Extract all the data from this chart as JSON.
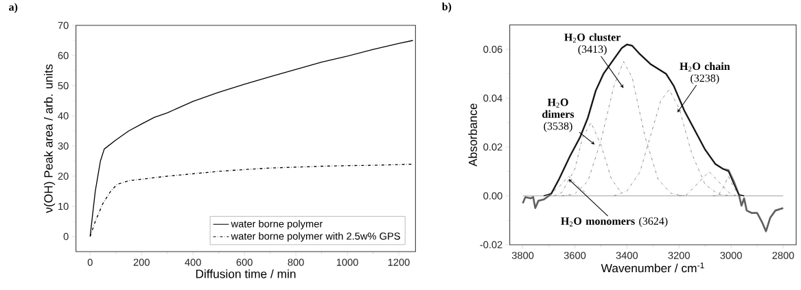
{
  "chart_data": [
    {
      "type": "line",
      "title": "a)",
      "xlabel": "Diffusion time / min",
      "ylabel": "ν(OH) Peak area / arb. units",
      "xlim": [
        -55,
        1265
      ],
      "ylim": [
        -5,
        70
      ],
      "xticks": [
        0,
        200,
        400,
        600,
        800,
        1000,
        1200
      ],
      "yticks": [
        0,
        10,
        20,
        30,
        40,
        50,
        60,
        70
      ],
      "legend": "bottom right",
      "series": [
        {
          "name": "water borne polymer",
          "color": "#000000",
          "line_style": "solid",
          "x": [
            0,
            20,
            40,
            55,
            100,
            150,
            200,
            250,
            300,
            400,
            500,
            600,
            700,
            800,
            900,
            1000,
            1100,
            1200,
            1255
          ],
          "values": [
            0,
            15,
            25,
            29,
            32,
            35,
            37.3,
            39.5,
            41,
            44.8,
            47.8,
            50.5,
            53,
            55.4,
            57.8,
            59.8,
            62,
            64,
            65
          ]
        },
        {
          "name": "water borne polymer with 2.5w% GPS",
          "color": "#000000",
          "line_style": "dashed",
          "x": [
            0,
            20,
            50,
            80,
            105,
            150,
            200,
            300,
            400,
            500,
            600,
            700,
            800,
            900,
            1000,
            1100,
            1255
          ],
          "values": [
            0,
            5,
            11,
            15,
            17.3,
            18.5,
            19,
            20,
            20.8,
            21.6,
            22.2,
            22.7,
            23,
            23.3,
            23.5,
            23.6,
            24
          ]
        }
      ]
    },
    {
      "type": "line",
      "title": "b)",
      "xlabel": "Wavenumber / cm$^{-1}$",
      "ylabel": "Absorbance",
      "xlim": [
        3850,
        2750
      ],
      "ylim": [
        -0.02,
        0.07
      ],
      "xticks": [
        3800,
        3600,
        3400,
        3200,
        3000,
        2800
      ],
      "yticks": [
        {
          "value": -0.02,
          "label": "-0.02"
        },
        {
          "value": 0,
          "label": "0.00"
        },
        {
          "value": 0.02,
          "label": "0.02"
        },
        {
          "value": 0.04,
          "label": "0.04"
        },
        {
          "value": 0.06,
          "label": "0.06"
        }
      ],
      "legend": false,
      "series": [
        {
          "color": "#707070",
          "line_style": "solid",
          "x": [
            3800,
            2800
          ],
          "values": [
            0,
            0
          ]
        },
        {
          "color": "#606060",
          "line_style": "solid",
          "x": [
            3800,
            3790,
            3770,
            3760,
            3752,
            3740,
            3720,
            3700,
            3690,
            3660,
            3620,
            3580,
            3550,
            3520,
            3490,
            3450,
            3420,
            3400,
            3380,
            3350,
            3310,
            3280,
            3250,
            3220,
            3180,
            3140,
            3100,
            3060,
            3030,
            3010,
            2990,
            2970,
            2960,
            2950,
            2940,
            2920,
            2900,
            2880,
            2866,
            2850,
            2830,
            2800
          ],
          "values": [
            -0.003,
            -0.0005,
            -0.001,
            -0.0005,
            -0.005,
            -0.002,
            -0.0015,
            0,
            0.001,
            0.007,
            0.016,
            0.024,
            0.032,
            0.043,
            0.05,
            0.056,
            0.0605,
            0.062,
            0.0615,
            0.058,
            0.054,
            0.052,
            0.05,
            0.045,
            0.035,
            0.027,
            0.019,
            0.013,
            0.011,
            0.0105,
            0.006,
            0.0005,
            -0.004,
            -0.001,
            -0.006,
            -0.007,
            -0.007,
            -0.011,
            -0.0145,
            -0.009,
            -0.006,
            -0.005
          ]
        },
        {
          "color": "#000000",
          "line_style": "solid",
          "x": [
            3720,
            3690,
            3660,
            3620,
            3580,
            3550,
            3520,
            3490,
            3450,
            3420,
            3400,
            3380,
            3350,
            3310,
            3280,
            3250,
            3220,
            3180,
            3140,
            3100,
            3060,
            3030,
            3010,
            2990,
            2970,
            2950
          ],
          "values": [
            0,
            0.001,
            0.007,
            0.016,
            0.024,
            0.032,
            0.043,
            0.05,
            0.056,
            0.0605,
            0.062,
            0.0615,
            0.058,
            0.054,
            0.052,
            0.05,
            0.045,
            0.035,
            0.027,
            0.019,
            0.013,
            0.011,
            0.01,
            0.005,
            0.0005,
            0
          ]
        },
        {
          "color": "#555555",
          "line_style": "dashed",
          "x": [
            3700,
            3660,
            3624,
            3590,
            3550
          ],
          "values": [
            0.0003,
            0.0038,
            0.008,
            0.0041,
            0.0004
          ]
        },
        {
          "color": "#555555",
          "line_style": "dashed",
          "x": [
            3680,
            3650,
            3600,
            3570,
            3538,
            3500,
            3460,
            3420
          ],
          "values": [
            0,
            0.0014,
            0.011,
            0.024,
            0.03,
            0.021,
            0.007,
            0.001
          ]
        },
        {
          "color": "#555555",
          "line_style": "dashed",
          "x": [
            3650,
            3600,
            3550,
            3500,
            3450,
            3413,
            3380,
            3330,
            3280,
            3230,
            3180
          ],
          "values": [
            0,
            0.0008,
            0.006,
            0.0225,
            0.045,
            0.055,
            0.0485,
            0.024,
            0.0067,
            0.001,
            0
          ]
        },
        {
          "color": "#555555",
          "line_style": "dashed",
          "x": [
            3450,
            3400,
            3350,
            3300,
            3270,
            3238,
            3200,
            3150,
            3100,
            3050,
            3000
          ],
          "values": [
            0,
            0.002,
            0.0098,
            0.028,
            0.039,
            0.0435,
            0.036,
            0.017,
            0.0047,
            0.0007,
            0
          ]
        },
        {
          "color": "#555555",
          "line_style": "dashed",
          "x": [
            3200,
            3170,
            3120,
            3085,
            3050,
            3000,
            2970
          ],
          "values": [
            0,
            0.0005,
            0.006,
            0.01,
            0.006,
            0.0005,
            0
          ]
        },
        {
          "color": "#555555",
          "line_style": "dashed",
          "x": [
            3070,
            3050,
            3030,
            3010,
            2990,
            2970,
            2950
          ],
          "values": [
            0,
            0.0002,
            0.0035,
            0.008,
            0.0035,
            0.0002,
            0
          ]
        }
      ],
      "annotations": [
        {
          "text": "**H**$_{2}$**O cluster** (3413)",
          "x": 3413,
          "y": 0.055
        },
        {
          "text": "**H**$_{2}$**O chain** (3238)",
          "x": 3238,
          "y": 0.0435
        },
        {
          "text": "**H**$_{2}$**O dimers** (3538)",
          "x": 3538,
          "y": 0.03
        },
        {
          "text": "**H**$_{2}$**O monomers** (3624)",
          "x": 3624,
          "y": 0.008
        }
      ]
    }
  ]
}
